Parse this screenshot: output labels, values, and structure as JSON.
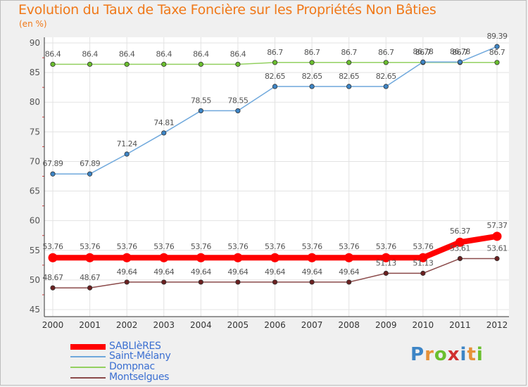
{
  "title": "Evolution du Taux de Taxe Foncière sur les Propriétés Non Bâties",
  "unit": "(en %)",
  "chart_data": {
    "type": "line",
    "title": "Evolution du Taux de Taxe Foncière sur les Propriétés Non Bâties",
    "ylabel": "(en %)",
    "xlabel": "",
    "ylim": [
      45,
      90
    ],
    "yticks": [
      45,
      50,
      55,
      60,
      65,
      70,
      75,
      80,
      85,
      90
    ],
    "grid": true,
    "legend_position": "bottom-left",
    "x": [
      "2000",
      "2001",
      "2002",
      "2003",
      "2004",
      "2005",
      "2006",
      "2007",
      "2008",
      "2009",
      "2010",
      "2011",
      "2012"
    ],
    "series": [
      {
        "name": "SABLIèRES",
        "color": "#ff0000",
        "values": [
          53.76,
          53.76,
          53.76,
          53.76,
          53.76,
          53.76,
          53.76,
          53.76,
          53.76,
          53.76,
          53.76,
          56.37,
          57.37
        ],
        "labels": [
          "53.76",
          "53.76",
          "53.76",
          "53.76",
          "53.76",
          "53.76",
          "53.76",
          "53.76",
          "53.76",
          "53.76",
          "53.76",
          "56.37",
          "57.37"
        ]
      },
      {
        "name": "Saint-Mélany",
        "color": "#6fa8dc",
        "marker_color": "#3d85c6",
        "values": [
          67.89,
          67.89,
          71.24,
          74.81,
          78.55,
          78.55,
          82.65,
          82.65,
          82.65,
          82.65,
          86.78,
          86.78,
          89.39
        ],
        "labels": [
          "67.89",
          "67.89",
          "71.24",
          "74.81",
          "78.55",
          "78.55",
          "82.65",
          "82.65",
          "82.65",
          "82.65",
          "86.78",
          "86.78",
          "89.39"
        ]
      },
      {
        "name": "Dompnac",
        "color": "#93d060",
        "marker_color": "#6abf2e",
        "values": [
          86.4,
          86.4,
          86.4,
          86.4,
          86.4,
          86.4,
          86.7,
          86.7,
          86.7,
          86.7,
          86.7,
          86.7,
          86.7
        ],
        "labels": [
          "86.4",
          "86.4",
          "86.4",
          "86.4",
          "86.4",
          "86.4",
          "86.7",
          "86.7",
          "86.7",
          "86.7",
          "86.7",
          "86.7",
          "86.7"
        ]
      },
      {
        "name": "Montselgues",
        "color": "#8b4a4a",
        "marker_color": "#6b2020",
        "values": [
          48.67,
          48.67,
          49.64,
          49.64,
          49.64,
          49.64,
          49.64,
          49.64,
          49.64,
          51.13,
          51.13,
          53.61,
          53.61
        ],
        "labels": [
          "48.67",
          "48.67",
          "49.64",
          "49.64",
          "49.64",
          "49.64",
          "49.64",
          "49.64",
          "49.64",
          "51.13",
          "51.13",
          "53.61",
          "53.61"
        ]
      }
    ]
  },
  "legend": {
    "items": [
      {
        "label": "SABLIèRES",
        "color": "#ff0000"
      },
      {
        "label": "Saint-Mélany",
        "color": "#6fa8dc"
      },
      {
        "label": "Dompnac",
        "color": "#93d060"
      },
      {
        "label": "Montselgues",
        "color": "#8b4a4a"
      }
    ]
  },
  "logo": {
    "text": "Proxiti",
    "letter_colors": [
      "#3d85c6",
      "#e69138",
      "#6abf2e",
      "#d03030",
      "#3d85c6",
      "#e69138",
      "#6abf2e"
    ]
  }
}
